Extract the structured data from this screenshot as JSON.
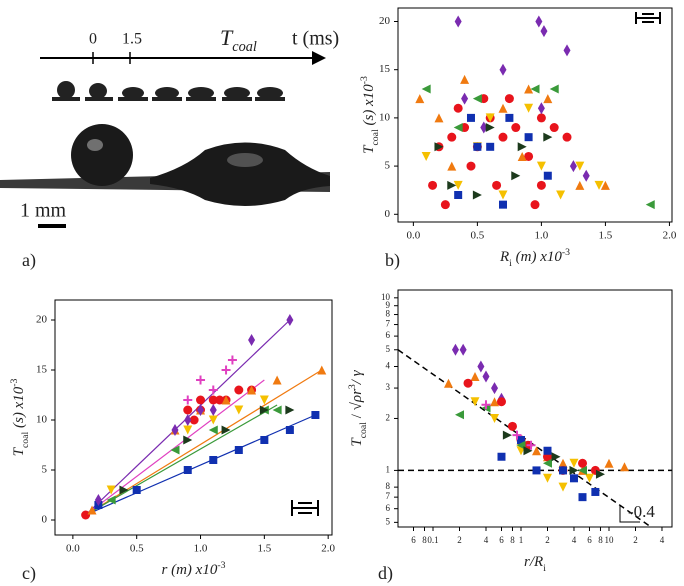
{
  "panel_a": {
    "ticks": [
      "0",
      "1.5"
    ],
    "event": [
      {
        "text": "T"
      },
      {
        "text": "coal",
        "shift": "sub"
      }
    ],
    "axis_label": "t (ms)",
    "scale": "1 mm",
    "panel_label": "a)"
  },
  "chart_data": [
    {
      "type": "scatter",
      "panel_label": "b)",
      "xlabel": [
        {
          "text": "R",
          "italic": true
        },
        {
          "text": "i",
          "shift": "sub"
        },
        {
          "text": " (m) x10",
          "italic": true
        },
        {
          "text": "-3",
          "shift": "super"
        }
      ],
      "ylabel": [
        {
          "text": "T",
          "italic": true
        },
        {
          "text": "coal",
          "shift": "sub"
        },
        {
          "text": "  (s) x10",
          "italic": true
        },
        {
          "text": "-3",
          "shift": "super"
        }
      ],
      "xlim": [
        -0.12,
        2.02
      ],
      "ylim": [
        -0.8,
        21.4
      ],
      "xticks": [
        {
          "value": 0,
          "label": "0.0"
        },
        {
          "value": 0.5,
          "label": "0.5"
        },
        {
          "value": 1,
          "label": "1.0"
        },
        {
          "value": 1.5,
          "label": "1.5"
        },
        {
          "value": 2,
          "label": "2.0"
        }
      ],
      "yticks": [
        0,
        5,
        10,
        15,
        20
      ],
      "series": [
        {
          "marker": "circle",
          "color": "#e8141c",
          "x": [
            0.3,
            0.4,
            0.5,
            0.6,
            0.7,
            0.8,
            0.9,
            1.0,
            1.1,
            0.2,
            0.35,
            0.55,
            0.45,
            0.65,
            1.0,
            0.15,
            0.25,
            0.95,
            1.2,
            0.75
          ],
          "values": [
            8,
            9,
            7,
            10,
            8,
            9,
            6,
            10,
            9,
            7,
            11,
            12,
            5,
            3,
            3,
            3,
            1,
            1,
            8,
            12
          ]
        },
        {
          "marker": "triangle-up",
          "color": "#f07a10",
          "x": [
            0.05,
            0.4,
            0.7,
            0.9,
            1.05,
            1.3,
            0.3,
            0.2,
            0.85,
            1.5
          ],
          "values": [
            12,
            14,
            11,
            13,
            12,
            3,
            5,
            10,
            6,
            3
          ]
        },
        {
          "marker": "triangle-down",
          "color": "#f5c000",
          "x": [
            0.5,
            0.7,
            1.0,
            1.3,
            1.45,
            0.6,
            0.9,
            1.15,
            0.1,
            0.35
          ],
          "values": [
            7,
            2,
            5,
            5,
            3,
            10,
            11,
            2,
            6,
            3
          ]
        },
        {
          "marker": "square",
          "color": "#1030b0",
          "x": [
            0.6,
            0.75,
            0.35,
            0.9,
            1.05,
            0.7,
            0.5,
            0.45
          ],
          "values": [
            7,
            10,
            2,
            8,
            4,
            1,
            7,
            10
          ]
        },
        {
          "marker": "diamond",
          "color": "#7a2bb0",
          "x": [
            0.35,
            0.98,
            1.02,
            1.2,
            0.7,
            1.25,
            1.35,
            0.4,
            1.0,
            0.55
          ],
          "values": [
            20,
            20,
            19,
            17,
            15,
            5,
            4,
            12,
            11,
            9
          ]
        },
        {
          "marker": "triangle-left",
          "color": "#3a9a3a",
          "x": [
            1.85,
            0.95,
            0.5,
            0.35,
            1.1,
            0.1
          ],
          "values": [
            1,
            13,
            12,
            9,
            13,
            13
          ]
        },
        {
          "marker": "triangle-right",
          "color": "#1c3a1c",
          "x": [
            0.2,
            0.6,
            0.85,
            1.05,
            0.5,
            0.3,
            0.8
          ],
          "values": [
            7,
            9,
            7,
            8,
            2,
            3,
            4
          ]
        }
      ]
    },
    {
      "type": "scatter",
      "panel_label": "c)",
      "xlabel": [
        {
          "text": "r",
          "italic": true
        },
        {
          "text": " (m) x10",
          "italic": true
        },
        {
          "text": "-3",
          "shift": "super"
        }
      ],
      "ylabel": [
        {
          "text": "T",
          "italic": true
        },
        {
          "text": "coal",
          "shift": "sub"
        },
        {
          "text": "  (s) x10",
          "italic": true
        },
        {
          "text": "-3",
          "shift": "super"
        }
      ],
      "xlim": [
        -0.14,
        2.03
      ],
      "ylim": [
        -1.5,
        22
      ],
      "xticks": [
        {
          "value": 0,
          "label": "0.0"
        },
        {
          "value": 0.5,
          "label": "0.5"
        },
        {
          "value": 1,
          "label": "1.0"
        },
        {
          "value": 1.5,
          "label": "1.5"
        },
        {
          "value": 2,
          "label": "2.0"
        }
      ],
      "yticks": [
        0,
        5,
        10,
        15,
        20
      ],
      "series": [
        {
          "marker": "circle",
          "color": "#e8141c",
          "x": [
            0.1,
            0.9,
            1.0,
            1.1,
            1.2,
            1.3,
            1.0,
            0.95,
            1.15,
            1.4
          ],
          "values": [
            0.5,
            11,
            12,
            12,
            12,
            13,
            11,
            10,
            12,
            13
          ]
        },
        {
          "marker": "triangle-up",
          "color": "#f07a10",
          "x": [
            0.15,
            0.8,
            1.0,
            1.2,
            1.4,
            1.6,
            1.95
          ],
          "values": [
            1,
            9,
            11,
            12,
            13,
            14,
            15
          ]
        },
        {
          "marker": "triangle-down",
          "color": "#f5c000",
          "x": [
            0.3,
            0.9,
            1.1,
            1.3,
            1.5
          ],
          "values": [
            3,
            9,
            10,
            11,
            12
          ]
        },
        {
          "marker": "square",
          "color": "#1030b0",
          "x": [
            0.2,
            0.5,
            0.9,
            1.1,
            1.3,
            1.5,
            1.7,
            1.9
          ],
          "values": [
            1.5,
            3,
            5,
            6,
            7,
            8,
            9,
            10.5
          ]
        },
        {
          "marker": "diamond",
          "color": "#7a2bb0",
          "x": [
            0.2,
            0.8,
            0.9,
            1.0,
            1.1,
            1.4,
            1.7
          ],
          "values": [
            2,
            9,
            10,
            11,
            11,
            18,
            20
          ]
        },
        {
          "marker": "plus",
          "color": "#e040c0",
          "x": [
            0.9,
            1.0,
            1.1,
            1.2,
            1.25
          ],
          "values": [
            12,
            14,
            13,
            15,
            16
          ]
        },
        {
          "marker": "triangle-left",
          "color": "#3a9a3a",
          "x": [
            0.3,
            0.8,
            1.1,
            1.5,
            1.6
          ],
          "values": [
            2,
            7,
            9,
            11,
            11
          ]
        },
        {
          "marker": "triangle-right",
          "color": "#1c3a1c",
          "x": [
            0.4,
            0.9,
            1.2,
            1.5,
            1.7
          ],
          "values": [
            3,
            8,
            9,
            11,
            11
          ]
        }
      ],
      "fits": [
        {
          "color": "#7a2bb0",
          "x": [
            0.1,
            1.7
          ],
          "values": [
            0.5,
            20
          ]
        },
        {
          "color": "#f07a10",
          "x": [
            0.1,
            1.95
          ],
          "values": [
            0.5,
            15
          ]
        },
        {
          "color": "#e040c0",
          "x": [
            0.1,
            1.5
          ],
          "values": [
            0.5,
            14
          ]
        },
        {
          "color": "#3a9a3a",
          "x": [
            0.1,
            1.6
          ],
          "values": [
            0.5,
            11.5
          ]
        },
        {
          "color": "#1030b0",
          "x": [
            0.1,
            1.9
          ],
          "values": [
            0.5,
            10.5
          ]
        }
      ]
    },
    {
      "type": "scatter",
      "panel_label": "d)",
      "xlog": true,
      "ylog": true,
      "xlabel": [
        {
          "text": "r/R",
          "italic": true
        },
        {
          "text": "i",
          "shift": "sub"
        }
      ],
      "ylabel": [
        {
          "text": "T",
          "italic": true
        },
        {
          "text": "coal",
          "shift": "sub"
        },
        {
          "text": " / √"
        },
        {
          "text": "ρr",
          "italic": true
        },
        {
          "text": "3",
          "shift": "super"
        },
        {
          "text": "/ γ",
          "italic": true
        }
      ],
      "xlim": [
        0.04,
        52
      ],
      "ylim": [
        0.47,
        11.1
      ],
      "xticks": [
        {
          "value": 0.06,
          "label": "6"
        },
        {
          "value": 0.08,
          "label": "8"
        },
        0.1,
        {
          "value": 0.2,
          "label": "2"
        },
        {
          "value": 0.4,
          "label": "4"
        },
        {
          "value": 0.6,
          "label": "6"
        },
        {
          "value": 0.8,
          "label": "8"
        },
        1,
        2,
        4,
        6,
        8,
        10,
        {
          "value": 20,
          "label": "2"
        },
        {
          "value": 40,
          "label": "4"
        }
      ],
      "yticks": [
        {
          "value": 0.5,
          "label": "5"
        },
        {
          "value": 0.6,
          "label": "6"
        },
        {
          "value": 0.7,
          "label": "7"
        },
        {
          "value": 0.8,
          "label": "8"
        },
        1,
        2,
        3,
        4,
        5,
        6,
        7,
        8,
        9,
        10
      ],
      "series": [
        {
          "marker": "diamond",
          "color": "#7a2bb0",
          "x": [
            0.18,
            0.22,
            0.35,
            0.4,
            0.5,
            0.6
          ],
          "values": [
            5,
            5,
            4,
            3.5,
            3,
            2.6
          ]
        },
        {
          "marker": "triangle-up",
          "color": "#f07a10",
          "x": [
            0.15,
            0.3,
            0.5,
            1.0,
            1.5,
            2.0,
            3,
            5,
            10,
            15
          ],
          "values": [
            3.2,
            3.5,
            2.5,
            1.5,
            1.3,
            1.2,
            1.1,
            1.0,
            1.1,
            1.05
          ]
        },
        {
          "marker": "circle",
          "color": "#e8141c",
          "x": [
            0.25,
            0.6,
            0.8,
            1.0,
            1.2,
            2,
            3,
            5,
            7
          ],
          "values": [
            3.2,
            2.5,
            1.8,
            1.5,
            1.4,
            1.2,
            1.0,
            1.1,
            1.0
          ]
        },
        {
          "marker": "triangle-down",
          "color": "#f5c000",
          "x": [
            0.3,
            0.5,
            1.0,
            2,
            3,
            4,
            6
          ],
          "values": [
            2.5,
            2,
            1.3,
            0.9,
            0.8,
            1.1,
            0.9
          ]
        },
        {
          "marker": "square",
          "color": "#1030b0",
          "x": [
            0.6,
            1.0,
            1.5,
            2,
            3,
            4,
            5,
            7
          ],
          "values": [
            1.2,
            1.5,
            1.0,
            1.3,
            1.0,
            0.9,
            0.7,
            0.75
          ]
        },
        {
          "marker": "triangle-left",
          "color": "#3a9a3a",
          "x": [
            0.2,
            0.4,
            1,
            2,
            5
          ],
          "values": [
            2.1,
            2.3,
            1.4,
            1.1,
            1.0
          ]
        },
        {
          "marker": "triangle-right",
          "color": "#1c3a1c",
          "x": [
            0.7,
            1.2,
            2.5,
            4,
            8
          ],
          "values": [
            1.6,
            1.3,
            1.2,
            1.0,
            0.95
          ]
        },
        {
          "marker": "plus",
          "color": "#e040c0",
          "x": [
            0.4,
            0.9,
            1.3
          ],
          "values": [
            2.4,
            1.6,
            1.4
          ]
        }
      ],
      "hlines": [
        1
      ],
      "reference_lines": [
        {
          "x": [
            0.04,
            30
          ],
          "values": [
            5,
            0.47
          ]
        }
      ],
      "annotation": "-0.4"
    }
  ]
}
